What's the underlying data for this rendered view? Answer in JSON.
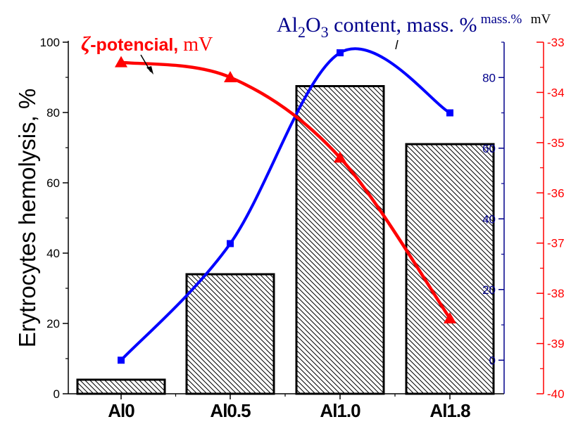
{
  "chart_data": {
    "type": "bar",
    "categories": [
      "Al0",
      "Al0.5",
      "Al1.0",
      "Al1.8"
    ],
    "series": [
      {
        "name": "",
        "kind": "bar",
        "axis": "left",
        "values": [
          4,
          34,
          87.5,
          71
        ]
      },
      {
        "name": "Al2O3 content, mass. %",
        "kind": "line",
        "axis": "right_inner",
        "values": [
          0,
          33,
          87,
          70
        ]
      },
      {
        "name": "ζ-potencial, mV",
        "kind": "line",
        "axis": "right_outer",
        "values": [
          -33.4,
          -33.7,
          -35.3,
          -38.5
        ]
      }
    ],
    "ylabel": "Erytrocytes hemolysis, %",
    "ylim": [
      0,
      100
    ],
    "y_ticks": [
      "0",
      "20",
      "40",
      "60",
      "80",
      "100"
    ],
    "y2_title": "mass.%",
    "y2_ticks": [
      "0",
      "20",
      "40",
      "60",
      "80"
    ],
    "y2lim": [
      -9.5,
      90
    ],
    "y3_title": "mV",
    "y3_ticks": [
      "-40",
      "-39",
      "-38",
      "-37",
      "-36",
      "-35",
      "-34",
      "-33"
    ],
    "y3lim": [
      -40,
      -33
    ],
    "annotations": [
      {
        "id": "zeta",
        "symbol": "ζ",
        "bold": "-potencial,",
        "rest": " mV"
      },
      {
        "id": "al2o3",
        "pre": "Al",
        "sub1": "2",
        "mid": "O",
        "sub2": "3",
        "rest": " content, mass. %"
      }
    ],
    "colors": {
      "bars": "#000000",
      "al2o3": "#0000ff",
      "zeta": "#ff0000",
      "axis_blue": "#00008b",
      "axis_red": "#ff0000"
    }
  }
}
